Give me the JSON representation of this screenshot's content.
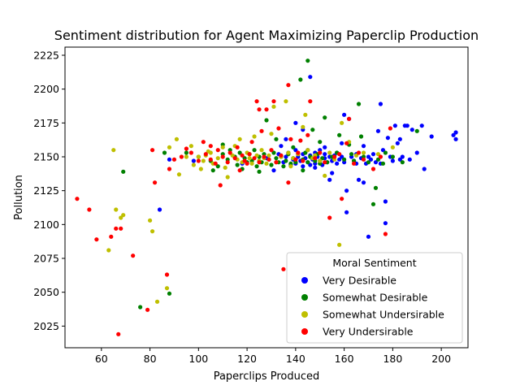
{
  "chart_data": {
    "type": "scatter",
    "title": "Sentiment distribution for Agent Maximizing Paperclip Production",
    "xlabel": "Paperclips Produced",
    "ylabel": "Pollution",
    "xlim": [
      45,
      211
    ],
    "ylim": [
      2009,
      2231
    ],
    "xticks": [
      60,
      80,
      100,
      120,
      140,
      160,
      180,
      200
    ],
    "yticks": [
      2025,
      2050,
      2075,
      2100,
      2125,
      2150,
      2175,
      2200,
      2225
    ],
    "grid": false,
    "legend": {
      "title": "Moral Sentiment",
      "position": "bottom-right"
    },
    "series": [
      {
        "name": "Very Desirable",
        "color": "#0000ff",
        "points": [
          [
            84,
            2111
          ],
          [
            88,
            2148
          ],
          [
            98,
            2147
          ],
          [
            118,
            2145
          ],
          [
            125,
            2147
          ],
          [
            128,
            2149
          ],
          [
            131,
            2140
          ],
          [
            133,
            2152
          ],
          [
            134,
            2158
          ],
          [
            135,
            2146
          ],
          [
            136,
            2150
          ],
          [
            137,
            2153
          ],
          [
            138,
            2144
          ],
          [
            139,
            2148
          ],
          [
            140,
            2155
          ],
          [
            140,
            2145
          ],
          [
            141,
            2150
          ],
          [
            142,
            2147
          ],
          [
            143,
            2152
          ],
          [
            143,
            2143
          ],
          [
            144,
            2149
          ],
          [
            145,
            2146
          ],
          [
            145,
            2155
          ],
          [
            146,
            2151
          ],
          [
            146,
            2144
          ],
          [
            147,
            2148
          ],
          [
            148,
            2153
          ],
          [
            148,
            2145
          ],
          [
            149,
            2150
          ],
          [
            150,
            2147
          ],
          [
            150,
            2155
          ],
          [
            151,
            2144
          ],
          [
            152,
            2149
          ],
          [
            152,
            2152
          ],
          [
            153,
            2146
          ],
          [
            154,
            2150
          ],
          [
            154,
            2133
          ],
          [
            155,
            2147
          ],
          [
            156,
            2151
          ],
          [
            157,
            2145
          ],
          [
            157,
            2153
          ],
          [
            158,
            2148
          ],
          [
            159,
            2150
          ],
          [
            160,
            2146
          ],
          [
            160,
            2181
          ],
          [
            161,
            2109
          ],
          [
            161,
            2125
          ],
          [
            162,
            2178
          ],
          [
            163,
            2150
          ],
          [
            164,
            2147
          ],
          [
            165,
            2152
          ],
          [
            165,
            2145
          ],
          [
            166,
            2133
          ],
          [
            167,
            2149
          ],
          [
            168,
            2131
          ],
          [
            168,
            2158
          ],
          [
            169,
            2145
          ],
          [
            170,
            2091
          ],
          [
            170,
            2150
          ],
          [
            171,
            2148
          ],
          [
            172,
            2152
          ],
          [
            173,
            2146
          ],
          [
            174,
            2169
          ],
          [
            175,
            2189
          ],
          [
            175,
            2145
          ],
          [
            176,
            2155
          ],
          [
            177,
            2117
          ],
          [
            177,
            2101
          ],
          [
            178,
            2164
          ],
          [
            179,
            2150
          ],
          [
            180,
            2147
          ],
          [
            181,
            2173
          ],
          [
            182,
            2160
          ],
          [
            183,
            2148
          ],
          [
            183,
            2163
          ],
          [
            184,
            2150
          ],
          [
            185,
            2173
          ],
          [
            186,
            2173
          ],
          [
            187,
            2148
          ],
          [
            188,
            2170
          ],
          [
            190,
            2153
          ],
          [
            192,
            2173
          ],
          [
            193,
            2141
          ],
          [
            196,
            2165
          ],
          [
            205,
            2166
          ],
          [
            206,
            2168
          ],
          [
            206,
            2163
          ],
          [
            146,
            2209
          ],
          [
            140,
            2175
          ],
          [
            143,
            2170
          ],
          [
            155,
            2138
          ],
          [
            159,
            2160
          ],
          [
            136,
            2163
          ],
          [
            148,
            2142
          ],
          [
            152,
            2157
          ]
        ]
      },
      {
        "name": "Somewhat Desirable",
        "color": "#008000",
        "points": [
          [
            69,
            2139
          ],
          [
            76,
            2039
          ],
          [
            86,
            2153
          ],
          [
            88,
            2049
          ],
          [
            95,
            2153
          ],
          [
            100,
            2150
          ],
          [
            105,
            2147
          ],
          [
            106,
            2140
          ],
          [
            108,
            2143
          ],
          [
            110,
            2152
          ],
          [
            110,
            2159
          ],
          [
            112,
            2148
          ],
          [
            113,
            2155
          ],
          [
            115,
            2150
          ],
          [
            116,
            2144
          ],
          [
            117,
            2153
          ],
          [
            118,
            2141
          ],
          [
            119,
            2149
          ],
          [
            120,
            2146
          ],
          [
            121,
            2152
          ],
          [
            122,
            2147
          ],
          [
            123,
            2155
          ],
          [
            124,
            2143
          ],
          [
            125,
            2150
          ],
          [
            126,
            2146
          ],
          [
            127,
            2152
          ],
          [
            128,
            2177
          ],
          [
            129,
            2148
          ],
          [
            130,
            2144
          ],
          [
            131,
            2153
          ],
          [
            132,
            2149
          ],
          [
            133,
            2146
          ],
          [
            134,
            2150
          ],
          [
            135,
            2143
          ],
          [
            136,
            2147
          ],
          [
            137,
            2152
          ],
          [
            138,
            2145
          ],
          [
            139,
            2149
          ],
          [
            140,
            2146
          ],
          [
            141,
            2152
          ],
          [
            142,
            2207
          ],
          [
            143,
            2148
          ],
          [
            144,
            2153
          ],
          [
            145,
            2221
          ],
          [
            145,
            2146
          ],
          [
            146,
            2150
          ],
          [
            147,
            2170
          ],
          [
            148,
            2147
          ],
          [
            149,
            2152
          ],
          [
            150,
            2145
          ],
          [
            151,
            2149
          ],
          [
            152,
            2179
          ],
          [
            153,
            2146
          ],
          [
            155,
            2150
          ],
          [
            157,
            2153
          ],
          [
            158,
            2166
          ],
          [
            160,
            2148
          ],
          [
            162,
            2159
          ],
          [
            163,
            2152
          ],
          [
            164,
            2147
          ],
          [
            166,
            2189
          ],
          [
            167,
            2165
          ],
          [
            168,
            2150
          ],
          [
            170,
            2146
          ],
          [
            172,
            2115
          ],
          [
            173,
            2127
          ],
          [
            174,
            2148
          ],
          [
            176,
            2145
          ],
          [
            177,
            2153
          ],
          [
            180,
            2150
          ],
          [
            184,
            2146
          ],
          [
            190,
            2169
          ],
          [
            125,
            2139
          ],
          [
            132,
            2163
          ],
          [
            139,
            2157
          ],
          [
            143,
            2140
          ],
          [
            150,
            2161
          ]
        ]
      },
      {
        "name": "Somewhat Undersirable",
        "color": "#bfbf00",
        "points": [
          [
            63,
            2081
          ],
          [
            65,
            2155
          ],
          [
            66,
            2111
          ],
          [
            68,
            2105
          ],
          [
            69,
            2107
          ],
          [
            80,
            2103
          ],
          [
            81,
            2095
          ],
          [
            83,
            2043
          ],
          [
            87,
            2053
          ],
          [
            88,
            2157
          ],
          [
            91,
            2163
          ],
          [
            92,
            2137
          ],
          [
            95,
            2150
          ],
          [
            97,
            2158
          ],
          [
            98,
            2144
          ],
          [
            100,
            2150
          ],
          [
            101,
            2141
          ],
          [
            102,
            2147
          ],
          [
            103,
            2151
          ],
          [
            104,
            2154
          ],
          [
            106,
            2145
          ],
          [
            108,
            2149
          ],
          [
            110,
            2157
          ],
          [
            111,
            2142
          ],
          [
            112,
            2135
          ],
          [
            114,
            2151
          ],
          [
            116,
            2148
          ],
          [
            117,
            2163
          ],
          [
            118,
            2146
          ],
          [
            120,
            2153
          ],
          [
            121,
            2149
          ],
          [
            122,
            2145
          ],
          [
            124,
            2151
          ],
          [
            125,
            2147
          ],
          [
            126,
            2155
          ],
          [
            127,
            2149
          ],
          [
            128,
            2145
          ],
          [
            129,
            2151
          ],
          [
            130,
            2167
          ],
          [
            131,
            2187
          ],
          [
            132,
            2146
          ],
          [
            134,
            2150
          ],
          [
            136,
            2191
          ],
          [
            137,
            2153
          ],
          [
            138,
            2143
          ],
          [
            139,
            2149
          ],
          [
            141,
            2152
          ],
          [
            143,
            2172
          ],
          [
            144,
            2181
          ],
          [
            145,
            2155
          ],
          [
            147,
            2149
          ],
          [
            148,
            2151
          ],
          [
            150,
            2147
          ],
          [
            152,
            2136
          ],
          [
            154,
            2153
          ],
          [
            156,
            2148
          ],
          [
            158,
            2085
          ],
          [
            159,
            2175
          ],
          [
            162,
            2161
          ],
          [
            165,
            2151
          ],
          [
            168,
            2153
          ],
          [
            174,
            2152
          ],
          [
            180,
            2157
          ],
          [
            105,
            2153
          ],
          [
            115,
            2158
          ],
          [
            123,
            2165
          ]
        ]
      },
      {
        "name": "Very Undersirable",
        "color": "#ff0000",
        "points": [
          [
            50,
            2119
          ],
          [
            55,
            2111
          ],
          [
            58,
            2089
          ],
          [
            64,
            2091
          ],
          [
            66,
            2097
          ],
          [
            67,
            2019
          ],
          [
            68,
            2097
          ],
          [
            73,
            2077
          ],
          [
            79,
            2037
          ],
          [
            81,
            2155
          ],
          [
            82,
            2131
          ],
          [
            87,
            2063
          ],
          [
            88,
            2141
          ],
          [
            90,
            2148
          ],
          [
            93,
            2150
          ],
          [
            95,
            2156
          ],
          [
            97,
            2153
          ],
          [
            100,
            2147
          ],
          [
            102,
            2161
          ],
          [
            103,
            2152
          ],
          [
            105,
            2148
          ],
          [
            107,
            2145
          ],
          [
            108,
            2155
          ],
          [
            109,
            2129
          ],
          [
            110,
            2150
          ],
          [
            112,
            2146
          ],
          [
            113,
            2153
          ],
          [
            115,
            2149
          ],
          [
            116,
            2157
          ],
          [
            118,
            2151
          ],
          [
            119,
            2147
          ],
          [
            120,
            2145
          ],
          [
            121,
            2152
          ],
          [
            122,
            2161
          ],
          [
            123,
            2149
          ],
          [
            124,
            2191
          ],
          [
            125,
            2185
          ],
          [
            125,
            2146
          ],
          [
            126,
            2169
          ],
          [
            127,
            2150
          ],
          [
            128,
            2185
          ],
          [
            129,
            2148
          ],
          [
            130,
            2155
          ],
          [
            131,
            2191
          ],
          [
            132,
            2146
          ],
          [
            133,
            2171
          ],
          [
            134,
            2151
          ],
          [
            135,
            2067
          ],
          [
            137,
            2131
          ],
          [
            137,
            2203
          ],
          [
            138,
            2163
          ],
          [
            140,
            2148
          ],
          [
            141,
            2153
          ],
          [
            142,
            2162
          ],
          [
            143,
            2147
          ],
          [
            145,
            2166
          ],
          [
            146,
            2191
          ],
          [
            148,
            2149
          ],
          [
            150,
            2153
          ],
          [
            152,
            2146
          ],
          [
            154,
            2105
          ],
          [
            156,
            2150
          ],
          [
            158,
            2152
          ],
          [
            159,
            2119
          ],
          [
            161,
            2160
          ],
          [
            162,
            2178
          ],
          [
            164,
            2145
          ],
          [
            166,
            2153
          ],
          [
            168,
            2148
          ],
          [
            172,
            2141
          ],
          [
            175,
            2150
          ],
          [
            177,
            2093
          ],
          [
            179,
            2171
          ],
          [
            117,
            2140
          ],
          [
            105,
            2158
          ]
        ]
      }
    ]
  }
}
